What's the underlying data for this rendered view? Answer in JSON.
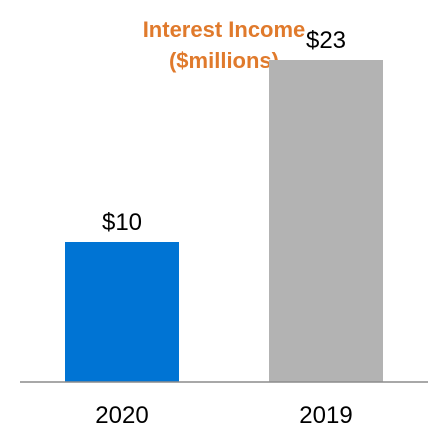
{
  "chart_data": {
    "type": "bar",
    "title_line1": "Interest Income",
    "title_line2": "($millions)",
    "title_color": "#E07A2C",
    "categories": [
      "2020",
      "2019"
    ],
    "values": [
      10,
      23
    ],
    "value_labels": [
      "$10",
      "$23"
    ],
    "bar_colors": [
      "#0074D4",
      "#B3B3B3"
    ],
    "axis_color": "#8C8C8C",
    "xlabel": "",
    "ylabel": "",
    "ylim": [
      0,
      25
    ],
    "grid": false,
    "legend": "none"
  }
}
